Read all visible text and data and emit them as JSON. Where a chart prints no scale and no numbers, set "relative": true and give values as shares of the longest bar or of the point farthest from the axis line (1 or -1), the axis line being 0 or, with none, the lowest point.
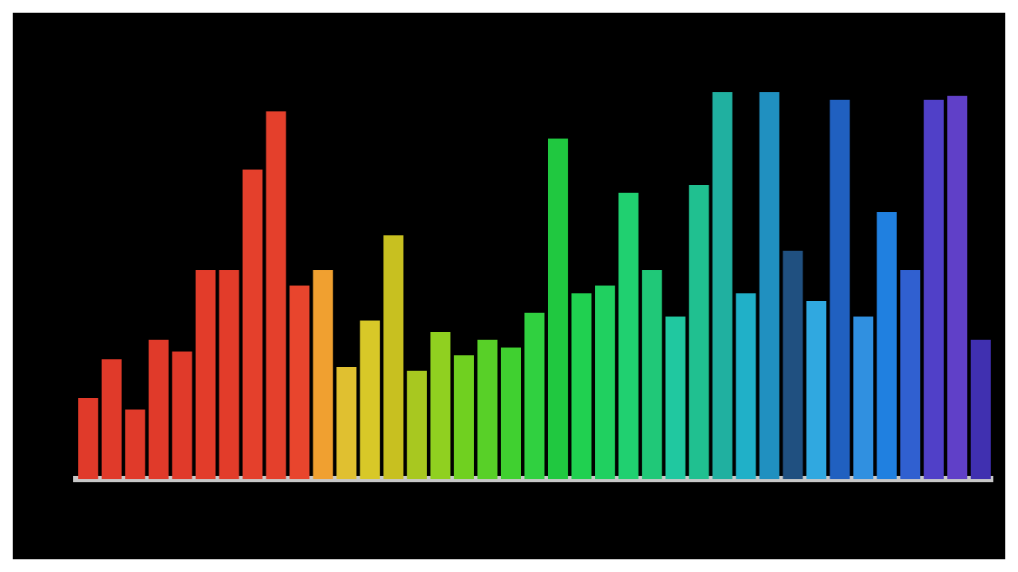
{
  "chart_data": {
    "type": "bar",
    "relative": true,
    "legend": false,
    "categories": [
      null,
      null,
      null,
      null,
      null,
      null,
      null,
      null,
      null,
      null,
      null,
      null,
      null,
      null,
      null,
      null,
      null,
      null,
      null,
      null,
      null,
      null,
      null,
      null,
      null,
      null,
      null,
      null,
      null,
      null,
      null,
      null,
      null,
      null,
      null,
      null,
      null,
      null,
      null
    ],
    "values": [
      0.21,
      0.31,
      0.18,
      0.36,
      0.33,
      0.54,
      0.54,
      0.8,
      0.95,
      0.5,
      0.54,
      0.29,
      0.41,
      0.63,
      0.28,
      0.38,
      0.32,
      0.36,
      0.34,
      0.43,
      0.88,
      0.48,
      0.5,
      0.74,
      0.54,
      0.42,
      0.76,
      1,
      0.48,
      1,
      0.59,
      0.46,
      0.98,
      0.42,
      0.69,
      0.54,
      0.98,
      0.99,
      0.36
    ],
    "colors": [
      "#e03a2a",
      "#e03a2a",
      "#e03a2a",
      "#e03a2a",
      "#e03a2a",
      "#e23c2a",
      "#e23c2a",
      "#e4402c",
      "#e4402c",
      "#e8452d",
      "#f0a030",
      "#e0c030",
      "#d8c828",
      "#c8c020",
      "#a8c820",
      "#90d020",
      "#70d020",
      "#58d028",
      "#40d030",
      "#30d040",
      "#20c840",
      "#20d050",
      "#20d060",
      "#20d070",
      "#20c878",
      "#20c8a0",
      "#20c090",
      "#20b0a0",
      "#20b0c8",
      "#2090c0",
      "#205080",
      "#30a8e0",
      "#2060c0",
      "#3090e0",
      "#2080e0",
      "#3060d0",
      "#5040c8",
      "#6040c8",
      "#4030b0"
    ]
  }
}
